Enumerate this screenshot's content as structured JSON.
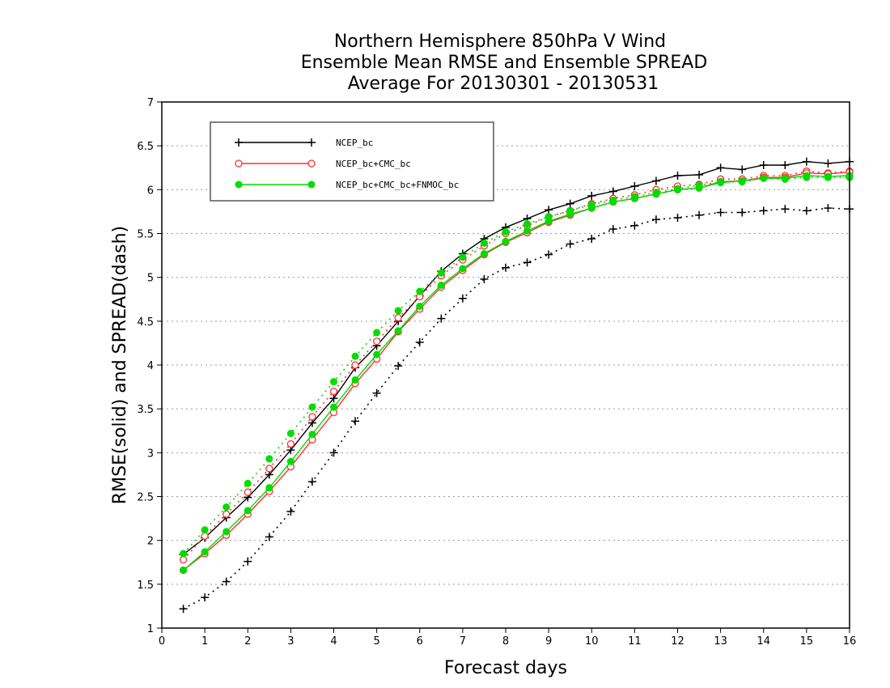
{
  "chart_data": {
    "type": "line",
    "title_lines": [
      "Northern Hemisphere 850hPa V Wind",
      "Ensemble Mean RMSE and Ensemble SPREAD",
      "Average For 20130301 - 20130531"
    ],
    "xlabel": "Forecast days",
    "ylabel": "RMSE(solid) and SPREAD(dash)",
    "xlim": [
      0,
      16
    ],
    "ylim": [
      1,
      7
    ],
    "x_ticks": [
      0,
      1,
      2,
      3,
      4,
      5,
      6,
      7,
      8,
      9,
      10,
      11,
      12,
      13,
      14,
      15,
      16
    ],
    "y_ticks": [
      1,
      1.5,
      2,
      2.5,
      3,
      3.5,
      4,
      4.5,
      5,
      5.5,
      6,
      6.5,
      7
    ],
    "y_grid": true,
    "legend_position": "top-left",
    "x": [
      0.5,
      1,
      1.5,
      2,
      2.5,
      3,
      3.5,
      4,
      4.5,
      5,
      5.5,
      6,
      6.5,
      7,
      7.5,
      8,
      8.5,
      9,
      9.5,
      10,
      10.5,
      11,
      11.5,
      12,
      12.5,
      13,
      13.5,
      14,
      14.5,
      15,
      15.5,
      16
    ],
    "series": [
      {
        "name": "NCEP_bc",
        "color": "#000000",
        "marker": "plus",
        "rmse": [
          1.84,
          2.03,
          2.26,
          2.49,
          2.75,
          3.03,
          3.34,
          3.62,
          3.97,
          4.22,
          4.5,
          4.79,
          5.07,
          5.27,
          5.44,
          5.57,
          5.67,
          5.77,
          5.84,
          5.93,
          5.98,
          6.04,
          6.1,
          6.16,
          6.17,
          6.25,
          6.23,
          6.28,
          6.28,
          6.32,
          6.3,
          6.32
        ],
        "spread": [
          1.22,
          1.35,
          1.53,
          1.76,
          2.04,
          2.33,
          2.67,
          3.0,
          3.36,
          3.68,
          3.99,
          4.26,
          4.53,
          4.76,
          4.98,
          5.11,
          5.17,
          5.26,
          5.38,
          5.44,
          5.55,
          5.59,
          5.66,
          5.68,
          5.71,
          5.74,
          5.74,
          5.76,
          5.78,
          5.76,
          5.79,
          5.78
        ]
      },
      {
        "name": "NCEP_bc+CMC_bc",
        "color": "#ff3030",
        "marker": "open-circle",
        "rmse": [
          1.66,
          1.85,
          2.06,
          2.3,
          2.56,
          2.84,
          3.15,
          3.46,
          3.79,
          4.07,
          4.38,
          4.64,
          4.89,
          5.08,
          5.26,
          5.4,
          5.51,
          5.63,
          5.71,
          5.79,
          5.86,
          5.9,
          5.95,
          6.0,
          6.02,
          6.09,
          6.1,
          6.14,
          6.14,
          6.19,
          6.18,
          6.2
        ],
        "spread": [
          1.78,
          2.05,
          2.3,
          2.55,
          2.82,
          3.1,
          3.41,
          3.7,
          4.0,
          4.27,
          4.54,
          4.78,
          5.02,
          5.2,
          5.36,
          5.5,
          5.59,
          5.69,
          5.76,
          5.84,
          5.9,
          5.94,
          6.0,
          6.04,
          6.06,
          6.12,
          6.12,
          6.16,
          6.16,
          6.21,
          6.19,
          6.21
        ]
      },
      {
        "name": "NCEP_bc+CMC_bc+FNMOC_bc",
        "color": "#00dd00",
        "marker": "filled-circle",
        "rmse": [
          1.66,
          1.87,
          2.1,
          2.34,
          2.6,
          2.9,
          3.21,
          3.52,
          3.83,
          4.12,
          4.39,
          4.67,
          4.91,
          5.1,
          5.27,
          5.41,
          5.53,
          5.64,
          5.72,
          5.79,
          5.86,
          5.9,
          5.95,
          6.0,
          6.02,
          6.08,
          6.1,
          6.13,
          6.13,
          6.16,
          6.15,
          6.16
        ],
        "spread": [
          1.85,
          2.12,
          2.38,
          2.65,
          2.93,
          3.22,
          3.52,
          3.81,
          4.1,
          4.37,
          4.62,
          4.84,
          5.05,
          5.23,
          5.39,
          5.52,
          5.61,
          5.69,
          5.76,
          5.83,
          5.88,
          5.92,
          5.97,
          6.01,
          6.05,
          6.09,
          6.09,
          6.13,
          6.12,
          6.14,
          6.14,
          6.14
        ]
      }
    ]
  }
}
